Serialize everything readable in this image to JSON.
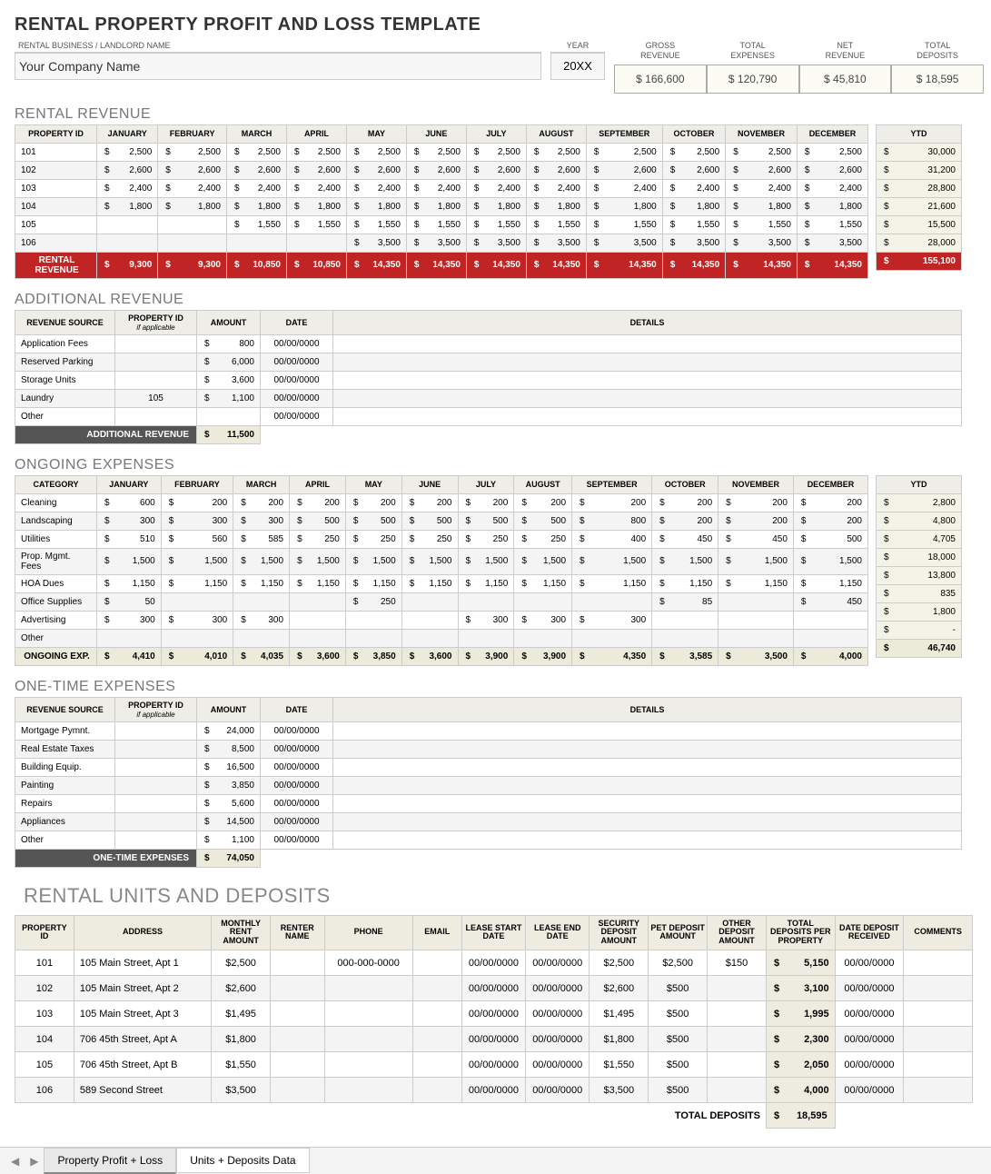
{
  "header": {
    "title": "RENTAL PROPERTY PROFIT AND LOSS TEMPLATE",
    "company_label": "RENTAL BUSINESS / LANDLORD NAME",
    "company_value": "Your Company Name",
    "year_label": "YEAR",
    "year_value": "20XX",
    "summary": [
      {
        "label": "GROSS REVENUE",
        "value": "$ 166,600"
      },
      {
        "label": "TOTAL EXPENSES",
        "value": "$ 120,790"
      },
      {
        "label": "NET REVENUE",
        "value": "$  45,810"
      },
      {
        "label": "TOTAL DEPOSITS",
        "value": "$  18,595"
      }
    ]
  },
  "months": [
    "JANUARY",
    "FEBRUARY",
    "MARCH",
    "APRIL",
    "MAY",
    "JUNE",
    "JULY",
    "AUGUST",
    "SEPTEMBER",
    "OCTOBER",
    "NOVEMBER",
    "DECEMBER"
  ],
  "rental_rev": {
    "title": "RENTAL REVENUE",
    "col0": "PROPERTY ID",
    "ytd_label": "YTD",
    "rows": [
      {
        "id": "101",
        "v": [
          "2,500",
          "2,500",
          "2,500",
          "2,500",
          "2,500",
          "2,500",
          "2,500",
          "2,500",
          "2,500",
          "2,500",
          "2,500",
          "2,500"
        ],
        "ytd": "30,000"
      },
      {
        "id": "102",
        "v": [
          "2,600",
          "2,600",
          "2,600",
          "2,600",
          "2,600",
          "2,600",
          "2,600",
          "2,600",
          "2,600",
          "2,600",
          "2,600",
          "2,600"
        ],
        "ytd": "31,200"
      },
      {
        "id": "103",
        "v": [
          "2,400",
          "2,400",
          "2,400",
          "2,400",
          "2,400",
          "2,400",
          "2,400",
          "2,400",
          "2,400",
          "2,400",
          "2,400",
          "2,400"
        ],
        "ytd": "28,800"
      },
      {
        "id": "104",
        "v": [
          "1,800",
          "1,800",
          "1,800",
          "1,800",
          "1,800",
          "1,800",
          "1,800",
          "1,800",
          "1,800",
          "1,800",
          "1,800",
          "1,800"
        ],
        "ytd": "21,600"
      },
      {
        "id": "105",
        "v": [
          "",
          "",
          "1,550",
          "1,550",
          "1,550",
          "1,550",
          "1,550",
          "1,550",
          "1,550",
          "1,550",
          "1,550",
          "1,550"
        ],
        "ytd": "15,500"
      },
      {
        "id": "106",
        "v": [
          "",
          "",
          "",
          "",
          "3,500",
          "3,500",
          "3,500",
          "3,500",
          "3,500",
          "3,500",
          "3,500",
          "3,500"
        ],
        "ytd": "28,000"
      }
    ],
    "total_label": "RENTAL REVENUE",
    "totals": [
      "9,300",
      "9,300",
      "10,850",
      "10,850",
      "14,350",
      "14,350",
      "14,350",
      "14,350",
      "14,350",
      "14,350",
      "14,350",
      "14,350"
    ],
    "ytd_total": "155,100"
  },
  "add_rev": {
    "title": "ADDITIONAL REVENUE",
    "cols": [
      "REVENUE SOURCE",
      "PROPERTY ID",
      "AMOUNT",
      "DATE",
      "DETAILS"
    ],
    "sub": "if applicable",
    "rows": [
      {
        "src": "Application Fees",
        "pid": "",
        "amt": "800",
        "date": "00/00/0000",
        "det": ""
      },
      {
        "src": "Reserved Parking",
        "pid": "",
        "amt": "6,000",
        "date": "00/00/0000",
        "det": ""
      },
      {
        "src": "Storage Units",
        "pid": "",
        "amt": "3,600",
        "date": "00/00/0000",
        "det": ""
      },
      {
        "src": "Laundry",
        "pid": "105",
        "amt": "1,100",
        "date": "00/00/0000",
        "det": ""
      },
      {
        "src": "Other",
        "pid": "",
        "amt": "",
        "date": "00/00/0000",
        "det": ""
      }
    ],
    "total_label": "ADDITIONAL REVENUE",
    "total": "11,500"
  },
  "ongoing": {
    "title": "ONGOING EXPENSES",
    "col0": "CATEGORY",
    "rows": [
      {
        "id": "Cleaning",
        "v": [
          "600",
          "200",
          "200",
          "200",
          "200",
          "200",
          "200",
          "200",
          "200",
          "200",
          "200",
          "200"
        ],
        "ytd": "2,800"
      },
      {
        "id": "Landscaping",
        "v": [
          "300",
          "300",
          "300",
          "500",
          "500",
          "500",
          "500",
          "500",
          "800",
          "200",
          "200",
          "200"
        ],
        "ytd": "4,800"
      },
      {
        "id": "Utilities",
        "v": [
          "510",
          "560",
          "585",
          "250",
          "250",
          "250",
          "250",
          "250",
          "400",
          "450",
          "450",
          "500"
        ],
        "ytd": "4,705"
      },
      {
        "id": "Prop. Mgmt. Fees",
        "v": [
          "1,500",
          "1,500",
          "1,500",
          "1,500",
          "1,500",
          "1,500",
          "1,500",
          "1,500",
          "1,500",
          "1,500",
          "1,500",
          "1,500"
        ],
        "ytd": "18,000"
      },
      {
        "id": "HOA Dues",
        "v": [
          "1,150",
          "1,150",
          "1,150",
          "1,150",
          "1,150",
          "1,150",
          "1,150",
          "1,150",
          "1,150",
          "1,150",
          "1,150",
          "1,150"
        ],
        "ytd": "13,800"
      },
      {
        "id": "Office Supplies",
        "v": [
          "50",
          "",
          "",
          "",
          "250",
          "",
          "",
          "",
          "",
          "85",
          "",
          "450"
        ],
        "ytd": "835"
      },
      {
        "id": "Advertising",
        "v": [
          "300",
          "300",
          "300",
          "",
          "",
          "",
          "300",
          "300",
          "300",
          "",
          "",
          ""
        ],
        "ytd": "1,800"
      },
      {
        "id": "Other",
        "v": [
          "",
          "",
          "",
          "",
          "",
          "",
          "",
          "",
          "",
          "",
          "",
          ""
        ],
        "ytd": "-"
      }
    ],
    "total_label": "ONGOING EXP.",
    "totals": [
      "4,410",
      "4,010",
      "4,035",
      "3,600",
      "3,850",
      "3,600",
      "3,900",
      "3,900",
      "4,350",
      "3,585",
      "3,500",
      "4,000"
    ],
    "ytd_total": "46,740"
  },
  "onetime": {
    "title": "ONE-TIME EXPENSES",
    "cols": [
      "REVENUE SOURCE",
      "PROPERTY ID",
      "AMOUNT",
      "DATE",
      "DETAILS"
    ],
    "sub": "if applicable",
    "rows": [
      {
        "src": "Mortgage Pymnt.",
        "pid": "",
        "amt": "24,000",
        "date": "00/00/0000",
        "det": ""
      },
      {
        "src": "Real Estate Taxes",
        "pid": "",
        "amt": "8,500",
        "date": "00/00/0000",
        "det": ""
      },
      {
        "src": "Building Equip.",
        "pid": "",
        "amt": "16,500",
        "date": "00/00/0000",
        "det": ""
      },
      {
        "src": "Painting",
        "pid": "",
        "amt": "3,850",
        "date": "00/00/0000",
        "det": ""
      },
      {
        "src": "Repairs",
        "pid": "",
        "amt": "5,600",
        "date": "00/00/0000",
        "det": ""
      },
      {
        "src": "Appliances",
        "pid": "",
        "amt": "14,500",
        "date": "00/00/0000",
        "det": ""
      },
      {
        "src": "Other",
        "pid": "",
        "amt": "1,100",
        "date": "00/00/0000",
        "det": ""
      }
    ],
    "total_label": "ONE-TIME EXPENSES",
    "total": "74,050"
  },
  "units": {
    "title": "RENTAL UNITS AND DEPOSITS",
    "cols": [
      "PROPERTY ID",
      "ADDRESS",
      "MONTHLY RENT AMOUNT",
      "RENTER NAME",
      "PHONE",
      "EMAIL",
      "LEASE START DATE",
      "LEASE END DATE",
      "SECURITY DEPOSIT AMOUNT",
      "PET DEPOSIT AMOUNT",
      "OTHER DEPOSIT AMOUNT",
      "TOTAL DEPOSITS PER PROPERTY",
      "DATE DEPOSIT RECEIVED",
      "COMMENTS"
    ],
    "rows": [
      {
        "id": "101",
        "addr": "105 Main Street, Apt 1",
        "rent": "$2,500",
        "rn": "",
        "ph": "000-000-0000",
        "em": "",
        "ls": "00/00/0000",
        "le": "00/00/0000",
        "sec": "$2,500",
        "pet": "$2,500",
        "oth": "$150",
        "tot": "5,150",
        "dd": "00/00/0000",
        "c": ""
      },
      {
        "id": "102",
        "addr": "105 Main Street, Apt 2",
        "rent": "$2,600",
        "rn": "",
        "ph": "",
        "em": "",
        "ls": "00/00/0000",
        "le": "00/00/0000",
        "sec": "$2,600",
        "pet": "$500",
        "oth": "",
        "tot": "3,100",
        "dd": "00/00/0000",
        "c": ""
      },
      {
        "id": "103",
        "addr": "105 Main Street, Apt 3",
        "rent": "$1,495",
        "rn": "",
        "ph": "",
        "em": "",
        "ls": "00/00/0000",
        "le": "00/00/0000",
        "sec": "$1,495",
        "pet": "$500",
        "oth": "",
        "tot": "1,995",
        "dd": "00/00/0000",
        "c": ""
      },
      {
        "id": "104",
        "addr": "706 45th Street, Apt A",
        "rent": "$1,800",
        "rn": "",
        "ph": "",
        "em": "",
        "ls": "00/00/0000",
        "le": "00/00/0000",
        "sec": "$1,800",
        "pet": "$500",
        "oth": "",
        "tot": "2,300",
        "dd": "00/00/0000",
        "c": ""
      },
      {
        "id": "105",
        "addr": "706 45th Street, Apt B",
        "rent": "$1,550",
        "rn": "",
        "ph": "",
        "em": "",
        "ls": "00/00/0000",
        "le": "00/00/0000",
        "sec": "$1,550",
        "pet": "$500",
        "oth": "",
        "tot": "2,050",
        "dd": "00/00/0000",
        "c": ""
      },
      {
        "id": "106",
        "addr": "589 Second Street",
        "rent": "$3,500",
        "rn": "",
        "ph": "",
        "em": "",
        "ls": "00/00/0000",
        "le": "00/00/0000",
        "sec": "$3,500",
        "pet": "$500",
        "oth": "",
        "tot": "4,000",
        "dd": "00/00/0000",
        "c": ""
      }
    ],
    "total_label": "TOTAL DEPOSITS",
    "total": "18,595"
  },
  "tabs": {
    "t1": "Property Profit + Loss",
    "t2": "Units + Deposits Data"
  }
}
